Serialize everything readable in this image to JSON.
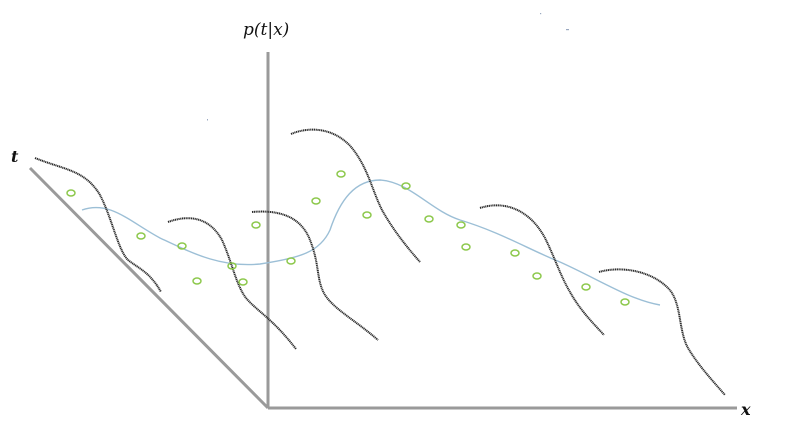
{
  "labels": {
    "vertical_axis": "p(t|x)",
    "depth_axis": "t",
    "horizontal_axis": "x"
  },
  "colors": {
    "axis": "#9a9a9a",
    "distribution_curve": "#2b2b2b",
    "regression_curve": "#9cbfd6",
    "data_points": "#8cc84b"
  },
  "counts": {
    "conditional_distributions": 6,
    "data_points": 19
  }
}
